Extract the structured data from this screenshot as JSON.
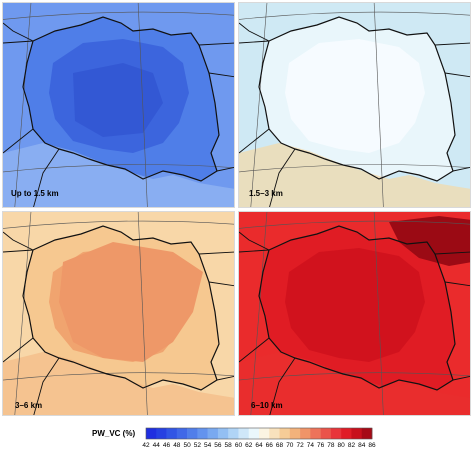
{
  "panels": [
    {
      "label": "Up to 1.5 km",
      "base": "#4f7ee8",
      "inner": "#3a63dc",
      "outer": "#6f99ef",
      "deep": "#3358d4",
      "extra": "#9fc0f4"
    },
    {
      "label": "1.5–3 km",
      "base": "#e9f6fb",
      "inner": "#f7fcff",
      "outer": "#cfe9f4",
      "deep": "#f7fcff",
      "extra": "#f3d9a6"
    },
    {
      "label": "3–6 km",
      "base": "#f6c890",
      "inner": "#f0a06c",
      "outer": "#f8d7a8",
      "deep": "#ee9868",
      "extra": "#f3b27b"
    },
    {
      "label": "6–10 km",
      "base": "#e01c24",
      "inner": "#cf121d",
      "outer": "#ea2b2c",
      "deep": "#9b0a14",
      "extra": "#e83030"
    }
  ],
  "colorbar": {
    "title": "PW_VC (%)",
    "ticks": [
      "42",
      "44",
      "46",
      "48",
      "50",
      "52",
      "54",
      "56",
      "58",
      "60",
      "62",
      "64",
      "66",
      "68",
      "70",
      "72",
      "74",
      "76",
      "78",
      "80",
      "82",
      "84",
      "86"
    ],
    "colors": [
      "#1f2ee0",
      "#2640e2",
      "#3155e5",
      "#4068e8",
      "#507eea",
      "#6393ee",
      "#79a9f0",
      "#93bff3",
      "#b0d4f6",
      "#cfe7f9",
      "#eaf7fc",
      "#fbf4e2",
      "#f9e2bd",
      "#f6cc97",
      "#f3b27b",
      "#f09468",
      "#ed735a",
      "#ea534a",
      "#e8343a",
      "#e01c26",
      "#c8101c",
      "#a60a16"
    ]
  }
}
